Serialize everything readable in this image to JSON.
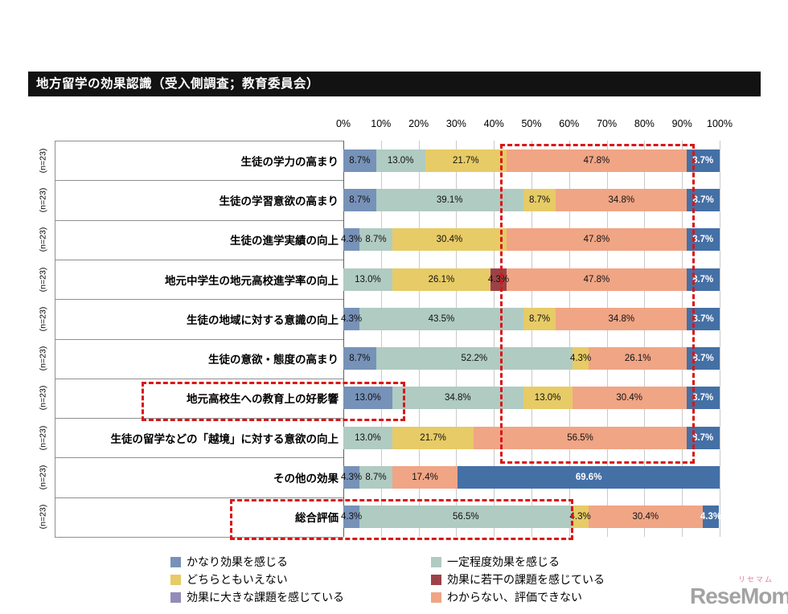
{
  "title": "地方留学の効果認識（受入側調査；教育委員会）",
  "axis_ticks": [
    "0%",
    "10%",
    "20%",
    "30%",
    "40%",
    "50%",
    "60%",
    "70%",
    "80%",
    "90%",
    "100%"
  ],
  "palette": {
    "blue": "#7792b8",
    "teal": "#b0cbc2",
    "yellow": "#e7cb66",
    "maroon": "#9c4247",
    "purple": "#958bb8",
    "salmon": "#f0a585",
    "darkblue": "#4470a6"
  },
  "legend": {
    "columns": [
      {
        "items": [
          {
            "label": "かなり効果を感じる",
            "color": "blue"
          },
          {
            "label": "どちらともいえない",
            "color": "yellow"
          },
          {
            "label": "効果に大きな課題を感じている",
            "color": "purple"
          }
        ]
      },
      {
        "items": [
          {
            "label": "一定程度効果を感じる",
            "color": "teal"
          },
          {
            "label": "効果に若干の課題を感じている",
            "color": "maroon"
          },
          {
            "label": "わからない、評価できない",
            "color": "salmon"
          }
        ]
      }
    ]
  },
  "chart_data": {
    "type": "bar",
    "subtype": "horizontal-stacked",
    "x_axis": {
      "min": 0,
      "max": 100,
      "tick_step": 10,
      "unit": "%"
    },
    "rows": [
      {
        "n": "(n=23)",
        "label": "生徒の学力の高まり",
        "segments": [
          {
            "value": 8.7,
            "label": "8.7%",
            "color": "blue"
          },
          {
            "value": 13.0,
            "label": "13.0%",
            "color": "teal"
          },
          {
            "value": 21.7,
            "label": "21.7%",
            "color": "yellow"
          },
          {
            "value": 47.8,
            "label": "47.8%",
            "color": "salmon"
          },
          {
            "value": 8.7,
            "label": "8.7%",
            "color": "darkblue"
          }
        ]
      },
      {
        "n": "(n=23)",
        "label": "生徒の学習意欲の高まり",
        "segments": [
          {
            "value": 8.7,
            "label": "8.7%",
            "color": "blue"
          },
          {
            "value": 39.1,
            "label": "39.1%",
            "color": "teal"
          },
          {
            "value": 8.7,
            "label": "8.7%",
            "color": "yellow"
          },
          {
            "value": 34.8,
            "label": "34.8%",
            "color": "salmon"
          },
          {
            "value": 8.7,
            "label": "8.7%",
            "color": "darkblue"
          }
        ]
      },
      {
        "n": "(n=23)",
        "label": "生徒の進学実績の向上",
        "segments": [
          {
            "value": 4.3,
            "label": "4.3%",
            "color": "blue"
          },
          {
            "value": 8.7,
            "label": "8.7%",
            "color": "teal"
          },
          {
            "value": 30.4,
            "label": "30.4%",
            "color": "yellow"
          },
          {
            "value": 47.8,
            "label": "47.8%",
            "color": "salmon"
          },
          {
            "value": 8.7,
            "label": "8.7%",
            "color": "darkblue"
          }
        ]
      },
      {
        "n": "(n=23)",
        "label": "地元中学生の地元高校進学率の向上",
        "segments": [
          {
            "value": 13.0,
            "label": "13.0%",
            "color": "teal"
          },
          {
            "value": 26.1,
            "label": "26.1%",
            "color": "yellow"
          },
          {
            "value": 4.3,
            "label": "4.3%",
            "color": "maroon"
          },
          {
            "value": 47.8,
            "label": "47.8%",
            "color": "salmon"
          },
          {
            "value": 8.7,
            "label": "8.7%",
            "color": "darkblue"
          }
        ]
      },
      {
        "n": "(n=23)",
        "label": "生徒の地域に対する意識の向上",
        "segments": [
          {
            "value": 4.3,
            "label": "4.3%",
            "color": "blue"
          },
          {
            "value": 43.5,
            "label": "43.5%",
            "color": "teal"
          },
          {
            "value": 8.7,
            "label": "8.7%",
            "color": "yellow"
          },
          {
            "value": 34.8,
            "label": "34.8%",
            "color": "salmon"
          },
          {
            "value": 8.7,
            "label": "8.7%",
            "color": "darkblue"
          }
        ]
      },
      {
        "n": "(n=23)",
        "label": "生徒の意欲・態度の高まり",
        "segments": [
          {
            "value": 8.7,
            "label": "8.7%",
            "color": "blue"
          },
          {
            "value": 52.2,
            "label": "52.2%",
            "color": "teal"
          },
          {
            "value": 4.3,
            "label": "4.3%",
            "color": "yellow"
          },
          {
            "value": 26.1,
            "label": "26.1%",
            "color": "salmon"
          },
          {
            "value": 8.7,
            "label": "8.7%",
            "color": "darkblue"
          }
        ]
      },
      {
        "n": "(n=23)",
        "label": "地元高校生への教育上の好影響",
        "segments": [
          {
            "value": 13.0,
            "label": "13.0%",
            "color": "blue"
          },
          {
            "value": 34.8,
            "label": "34.8%",
            "color": "teal"
          },
          {
            "value": 13.0,
            "label": "13.0%",
            "color": "yellow"
          },
          {
            "value": 30.4,
            "label": "30.4%",
            "color": "salmon"
          },
          {
            "value": 8.7,
            "label": "8.7%",
            "color": "darkblue"
          }
        ]
      },
      {
        "n": "(n=23)",
        "label": "生徒の留学などの「越境」に対する意欲の向上",
        "segments": [
          {
            "value": 13.0,
            "label": "13.0%",
            "color": "teal"
          },
          {
            "value": 21.7,
            "label": "21.7%",
            "color": "yellow"
          },
          {
            "value": 56.5,
            "label": "56.5%",
            "color": "salmon"
          },
          {
            "value": 8.7,
            "label": "8.7%",
            "color": "darkblue"
          }
        ]
      },
      {
        "n": "(n=23)",
        "label": "その他の効果",
        "segments": [
          {
            "value": 4.3,
            "label": "4.3%",
            "color": "blue"
          },
          {
            "value": 8.7,
            "label": "8.7%",
            "color": "teal"
          },
          {
            "value": 17.4,
            "label": "17.4%",
            "color": "salmon"
          },
          {
            "value": 69.6,
            "label": "69.6%",
            "color": "darkblue"
          }
        ]
      },
      {
        "n": "(n=23)",
        "label": "総合評価",
        "segments": [
          {
            "value": 4.3,
            "label": "4.3%",
            "color": "blue"
          },
          {
            "value": 56.5,
            "label": "56.5%",
            "color": "teal"
          },
          {
            "value": 4.3,
            "label": "4.3%",
            "color": "yellow"
          },
          {
            "value": 30.4,
            "label": "30.4%",
            "color": "salmon"
          },
          {
            "value": 4.3,
            "label": "4.3%",
            "color": "darkblue"
          }
        ]
      }
    ]
  },
  "logo": {
    "brand_small": "リセマム",
    "brand": "ReseMom"
  }
}
